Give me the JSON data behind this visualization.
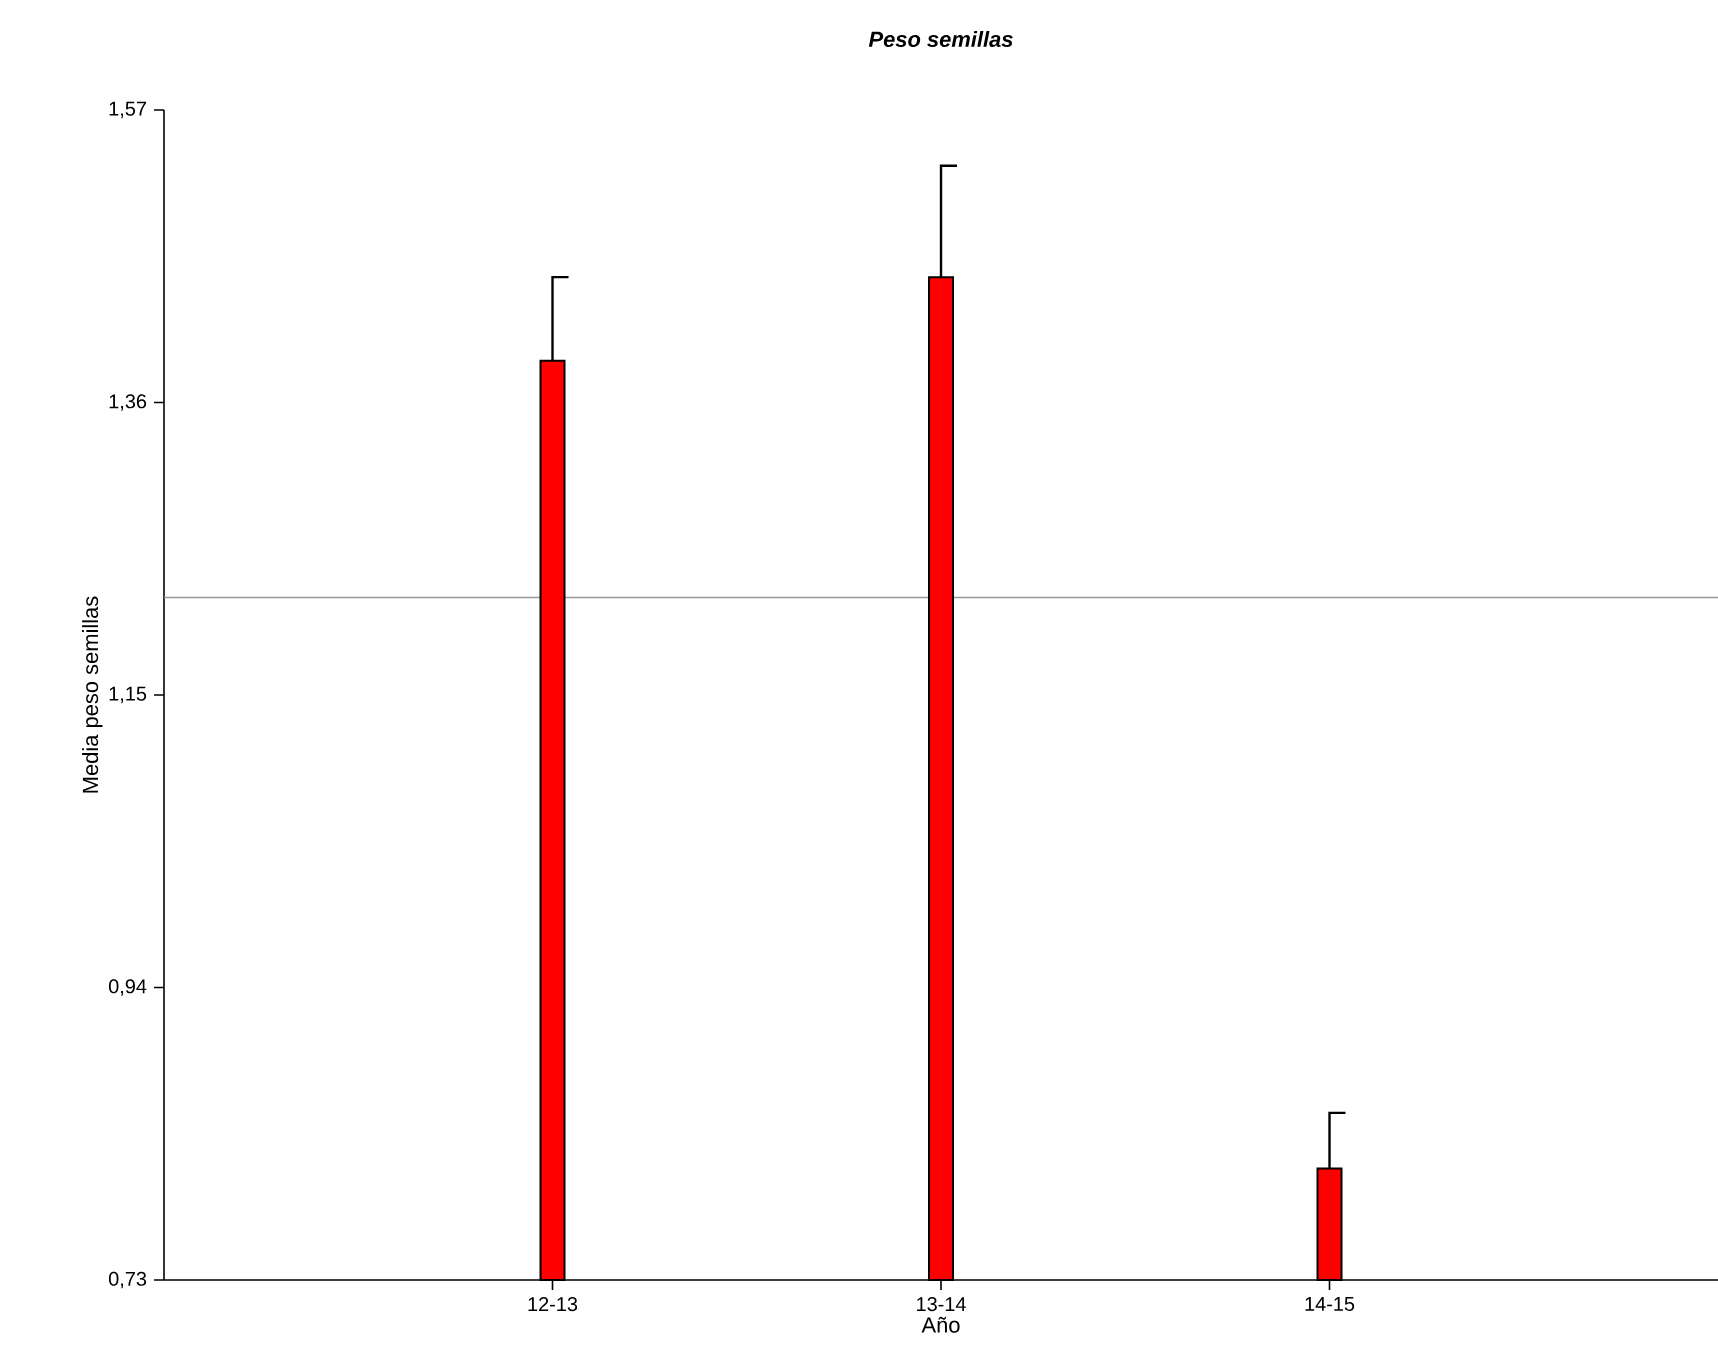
{
  "chart_data": {
    "type": "bar",
    "title": "Peso semillas",
    "xlabel": "Año",
    "ylabel": "Media peso semillas",
    "categories": [
      "12-13",
      "13-14",
      "14-15"
    ],
    "values": [
      1.39,
      1.45,
      0.81
    ],
    "errors": [
      [
        1.39,
        1.45
      ],
      [
        1.45,
        1.53
      ],
      [
        0.81,
        0.85
      ]
    ],
    "color": "#ff0000",
    "ylim": [
      0.73,
      1.57
    ],
    "yticks": [
      {
        "value": 0.73,
        "label": "0,73"
      },
      {
        "value": 0.94,
        "label": "0,94"
      },
      {
        "value": 1.15,
        "label": "1,15"
      },
      {
        "value": 1.36,
        "label": "1,36"
      },
      {
        "value": 1.57,
        "label": "1,57"
      }
    ],
    "ref_lines": [
      {
        "axis": "y",
        "value": 1.22,
        "color": "#999999"
      }
    ],
    "grid": false
  }
}
